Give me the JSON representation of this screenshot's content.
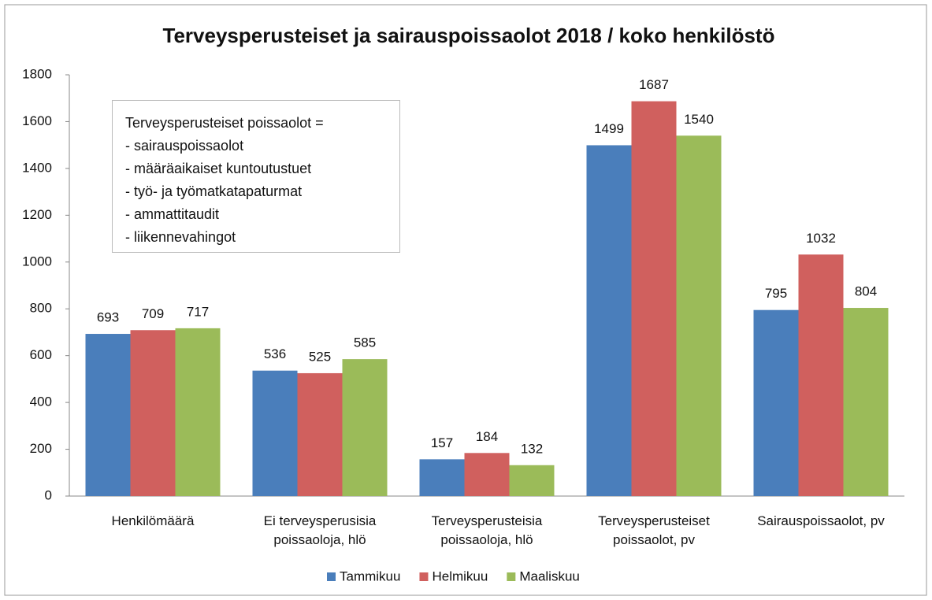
{
  "chart_data": {
    "type": "bar",
    "title": "Terveysperusteiset ja sairauspoissaolot 2018 / koko henkilöstö",
    "categories": [
      "Henkilömäärä",
      "Ei terveysperusisia\npoissaoloja, hlö",
      "Terveysperusteisia\npoissaoloja, hlö",
      "Terveysperusteiset\npoissaolot, pv",
      "Sairauspoissaolot, pv"
    ],
    "series": [
      {
        "name": "Tammikuu",
        "color": "#4a7ebb",
        "values": [
          693,
          536,
          157,
          1499,
          795
        ]
      },
      {
        "name": "Helmikuu",
        "color": "#d0605e",
        "values": [
          709,
          525,
          184,
          1687,
          1032
        ]
      },
      {
        "name": "Maaliskuu",
        "color": "#9bbb59",
        "values": [
          717,
          585,
          132,
          1540,
          804
        ]
      }
    ],
    "ylim": [
      0,
      1800
    ],
    "yticks": [
      0,
      200,
      400,
      600,
      800,
      1000,
      1200,
      1400,
      1600,
      1800
    ],
    "grid": false,
    "legend": "bottom",
    "annotation": {
      "title": "Terveysperusteiset poissaolot =",
      "items": [
        "- sairauspoissaolot",
        "- määräaikaiset kuntoutustuet",
        "- työ- ja työmatkatapaturmat",
        "- ammattitaudit",
        "- liikennevahingot"
      ]
    }
  }
}
